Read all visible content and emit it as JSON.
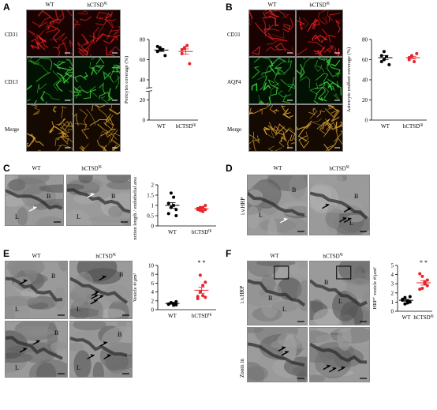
{
  "panels": {
    "A": {
      "label": "A",
      "col_titles": [
        "WT",
        "hCTSD"
      ],
      "col_title_sup": [
        "",
        "tg"
      ],
      "row_labels": [
        "CD31",
        "CD13",
        "Merge"
      ],
      "chart_data": {
        "type": "scatter",
        "categories": [
          "WT",
          "hCTSD"
        ],
        "category_sup": [
          "",
          "tg"
        ],
        "ylabel": "Pericytes coverage (%)",
        "ylim": [
          0,
          80
        ],
        "yticks": [
          0,
          20,
          40,
          60,
          80
        ],
        "axis_break": [
          20,
          40
        ],
        "series": [
          {
            "values": [
              68,
              72,
              70,
              64,
              73,
              70
            ],
            "mean": 69.5,
            "sem": 1.4,
            "color": "#000000"
          },
          {
            "values": [
              66,
              72,
              74,
              56,
              70,
              71
            ],
            "mean": 68,
            "sem": 2.6,
            "color": "#e8232a"
          }
        ]
      }
    },
    "B": {
      "label": "B",
      "col_titles": [
        "WT",
        "hCTSD"
      ],
      "col_title_sup": [
        "",
        "tg"
      ],
      "row_labels": [
        "CD31",
        "AQP4",
        "Merge"
      ],
      "chart_data": {
        "type": "scatter",
        "categories": [
          "WT",
          "hCTSD"
        ],
        "category_sup": [
          "",
          "tg"
        ],
        "ylabel": "Astrocyte endfeet coverage (%)",
        "ylim": [
          0,
          80
        ],
        "yticks": [
          0,
          20,
          40,
          60,
          80
        ],
        "series": [
          {
            "values": [
              58,
              68,
              63,
              55,
              64,
              60
            ],
            "mean": 62,
            "sem": 2.1,
            "color": "#000000"
          },
          {
            "values": [
              60,
              64,
              58,
              66,
              62,
              63
            ],
            "mean": 62,
            "sem": 1.3,
            "color": "#e8232a"
          }
        ]
      }
    },
    "C": {
      "label": "C",
      "col_titles": [
        "WT",
        "hCTSD"
      ],
      "col_title_sup": [
        "",
        "tg"
      ],
      "em_labels": [
        [
          "L",
          "B"
        ],
        [
          "L",
          "B"
        ]
      ],
      "chart_data": {
        "type": "scatter",
        "categories": [
          "WT",
          "hCTSD"
        ],
        "category_sup": [
          "",
          "tg"
        ],
        "ylabel": "Tight junction length / endothelial area (µm/µm²)",
        "ylim": [
          0,
          2
        ],
        "yticks": [
          0,
          0.5,
          1,
          1.5,
          2
        ],
        "series": [
          {
            "values": [
              1.1,
              1.6,
              1.4,
              0.8,
              0.6,
              0.9,
              1.0,
              0.5
            ],
            "mean": 1.0,
            "sem": 0.13,
            "color": "#000000"
          },
          {
            "values": [
              0.8,
              0.9,
              0.7,
              1.0,
              0.85,
              0.75,
              0.9,
              0.8
            ],
            "mean": 0.83,
            "sem": 0.04,
            "color": "#e8232a"
          }
        ]
      }
    },
    "D": {
      "label": "D",
      "col_titles": [
        "WT",
        "hCTSD"
      ],
      "col_title_sup": [
        "",
        "tg"
      ],
      "row_label": "i.v.HRP",
      "em_labels": [
        [
          "L",
          "B"
        ],
        [
          "L",
          "B"
        ]
      ]
    },
    "E": {
      "label": "E",
      "col_titles": [
        "WT",
        "hCTSD"
      ],
      "col_title_sup": [
        "",
        "tg"
      ],
      "em_labels": [
        [
          "L",
          "B"
        ],
        [
          "L",
          "B"
        ],
        [
          "L",
          "B"
        ],
        [
          "L",
          "B"
        ]
      ],
      "chart_data": {
        "type": "scatter",
        "categories": [
          "WT",
          "hCTSD"
        ],
        "category_sup": [
          "",
          "tg"
        ],
        "ylabel": "Vesicle #/µm²",
        "ylim": [
          0,
          10
        ],
        "yticks": [
          0,
          2,
          4,
          6,
          8,
          10
        ],
        "significance": "* *",
        "series": [
          {
            "values": [
              1.2,
              1.5,
              1.0,
              1.8,
              1.3,
              1.6,
              1.4,
              1.1
            ],
            "mean": 1.4,
            "sem": 0.1,
            "color": "#000000"
          },
          {
            "values": [
              3.0,
              7.8,
              5.5,
              6.2,
              2.5,
              4.0,
              3.2,
              2.8
            ],
            "mean": 4.4,
            "sem": 0.7,
            "color": "#e8232a"
          }
        ]
      }
    },
    "F": {
      "label": "F",
      "col_titles": [
        "WT",
        "hCTSD"
      ],
      "col_title_sup": [
        "",
        "tg"
      ],
      "row_labels": [
        "i.v.HRP",
        "Zoom in"
      ],
      "em_labels": [
        [
          "B",
          "L"
        ],
        [
          "B",
          "L"
        ]
      ],
      "chart_data": {
        "type": "scatter",
        "categories": [
          "WT",
          "hCTSD"
        ],
        "category_sup": [
          "",
          "tg"
        ],
        "ylabel": "HRP⁺ vesicle #/µm²",
        "ylim": [
          0,
          5
        ],
        "yticks": [
          0,
          1,
          2,
          3,
          4,
          5
        ],
        "significance": "* *",
        "series": [
          {
            "values": [
              1.2,
              1.5,
              0.9,
              1.0,
              1.3,
              0.8,
              1.1,
              1.6
            ],
            "mean": 1.2,
            "sem": 0.1,
            "color": "#000000"
          },
          {
            "values": [
              2.4,
              3.8,
              3.2,
              2.8,
              4.1,
              2.5,
              3.0,
              3.4
            ],
            "mean": 3.1,
            "sem": 0.25,
            "color": "#e8232a"
          }
        ]
      }
    }
  }
}
